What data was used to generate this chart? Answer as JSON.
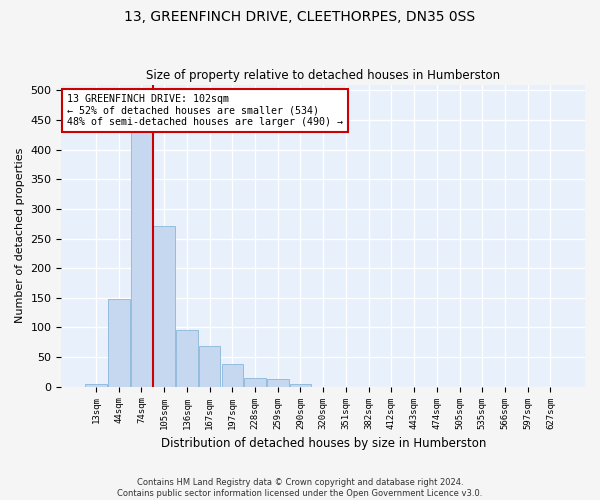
{
  "title_line1": "13, GREENFINCH DRIVE, CLEETHORPES, DN35 0SS",
  "title_line2": "Size of property relative to detached houses in Humberston",
  "xlabel": "Distribution of detached houses by size in Humberston",
  "ylabel": "Number of detached properties",
  "bar_color": "#c5d8f0",
  "bar_edge_color": "#7aafd4",
  "background_color": "#e8f0fb",
  "grid_color": "#ffffff",
  "vline_color": "#cc0000",
  "vline_x_idx": 2.5,
  "annotation_text": "13 GREENFINCH DRIVE: 102sqm\n← 52% of detached houses are smaller (534)\n48% of semi-detached houses are larger (490) →",
  "footer_text": "Contains HM Land Registry data © Crown copyright and database right 2024.\nContains public sector information licensed under the Open Government Licence v3.0.",
  "categories": [
    "13sqm",
    "44sqm",
    "74sqm",
    "105sqm",
    "136sqm",
    "167sqm",
    "197sqm",
    "228sqm",
    "259sqm",
    "290sqm",
    "320sqm",
    "351sqm",
    "382sqm",
    "412sqm",
    "443sqm",
    "474sqm",
    "505sqm",
    "535sqm",
    "566sqm",
    "597sqm",
    "627sqm"
  ],
  "values": [
    5,
    148,
    450,
    272,
    95,
    68,
    38,
    15,
    13,
    4,
    0,
    0,
    0,
    0,
    0,
    0,
    0,
    0,
    0,
    0,
    0
  ],
  "ylim": [
    0,
    510
  ],
  "yticks": [
    0,
    50,
    100,
    150,
    200,
    250,
    300,
    350,
    400,
    450,
    500
  ]
}
